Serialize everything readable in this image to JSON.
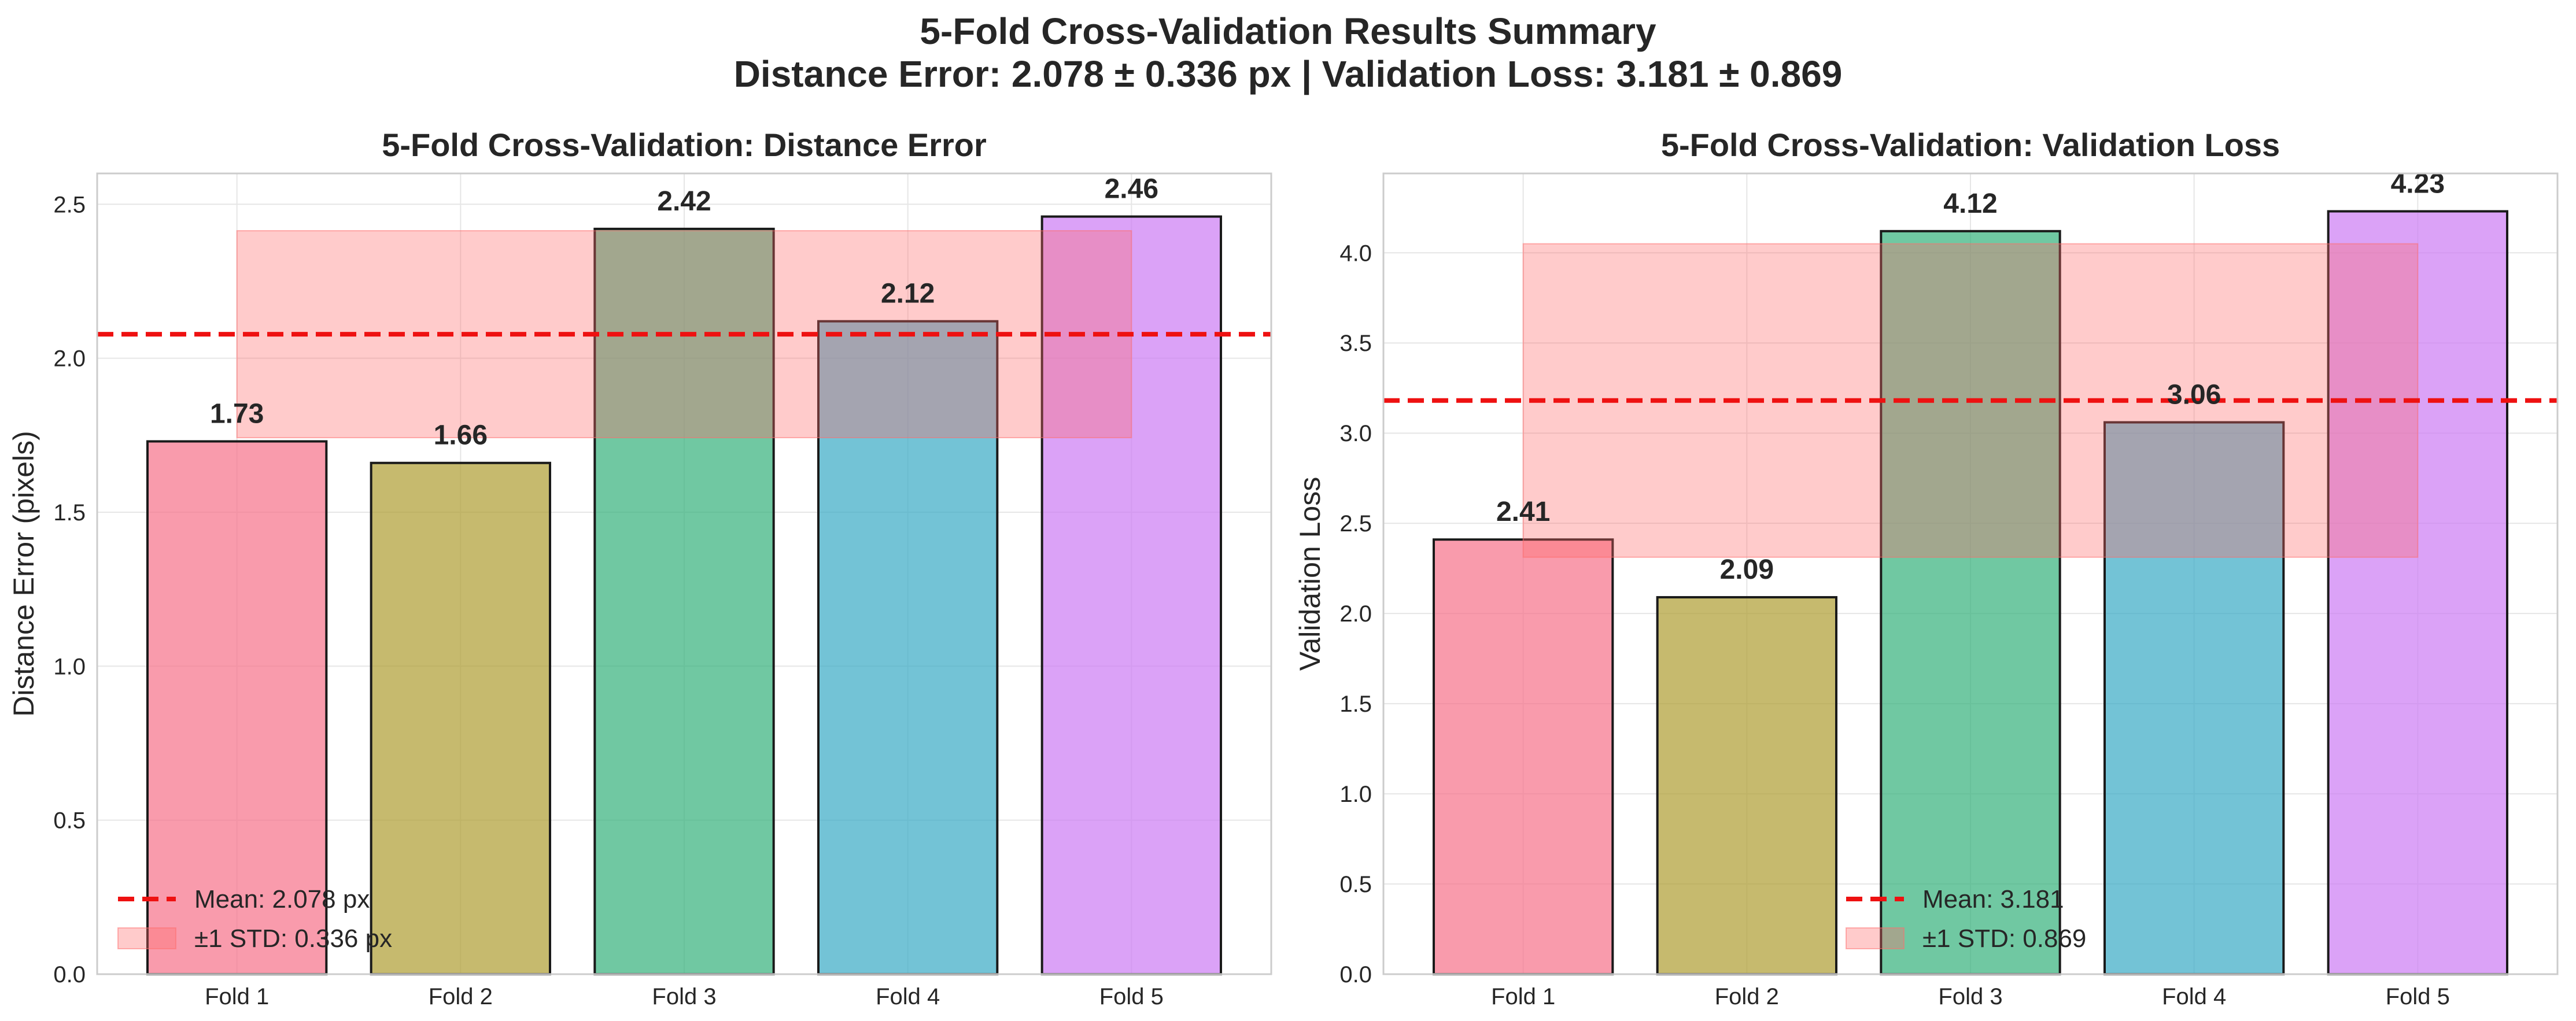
{
  "suptitle": [
    "5-Fold Cross-Validation Results Summary",
    "Distance Error: 2.078 ± 0.336 px | Validation Loss: 3.181 ± 0.869"
  ],
  "colors": {
    "bars": [
      "#f77189",
      "#ae9d31",
      "#33b07a",
      "#38a9c5",
      "#cc7af4"
    ],
    "mean_line": "#ee1111",
    "std_band": "#ff6b6b",
    "grid": "#e6e6e6",
    "frame": "#cccccc"
  },
  "chart_data": [
    {
      "type": "bar",
      "title": "5-Fold Cross-Validation: Distance Error",
      "xlabel": "",
      "ylabel": "Distance Error (pixels)",
      "categories": [
        "Fold 1",
        "Fold 2",
        "Fold 3",
        "Fold 4",
        "Fold 5"
      ],
      "values": [
        1.73,
        1.66,
        2.42,
        2.12,
        2.46
      ],
      "value_labels": [
        "1.73",
        "1.66",
        "2.42",
        "2.12",
        "2.46"
      ],
      "ylim": [
        0,
        2.6
      ],
      "yticks": [
        0.0,
        0.5,
        1.0,
        1.5,
        2.0,
        2.5
      ],
      "ytick_labels": [
        "0.0",
        "0.5",
        "1.0",
        "1.5",
        "2.0",
        "2.5"
      ],
      "mean": 2.078,
      "std": 0.336,
      "legend": [
        "Mean: 2.078 px",
        "±1 STD: 0.336 px"
      ],
      "legend_position": "lower-left",
      "grid": true
    },
    {
      "type": "bar",
      "title": "5-Fold Cross-Validation: Validation Loss",
      "xlabel": "",
      "ylabel": "Validation Loss",
      "categories": [
        "Fold 1",
        "Fold 2",
        "Fold 3",
        "Fold 4",
        "Fold 5"
      ],
      "values": [
        2.41,
        2.09,
        4.12,
        3.06,
        4.23
      ],
      "value_labels": [
        "2.41",
        "2.09",
        "4.12",
        "3.06",
        "4.23"
      ],
      "ylim": [
        0,
        4.44
      ],
      "yticks": [
        0.0,
        0.5,
        1.0,
        1.5,
        2.0,
        2.5,
        3.0,
        3.5,
        4.0
      ],
      "ytick_labels": [
        "0.0",
        "0.5",
        "1.0",
        "1.5",
        "2.0",
        "2.5",
        "3.0",
        "3.5",
        "4.0"
      ],
      "mean": 3.181,
      "std": 0.869,
      "legend": [
        "Mean: 3.181",
        "±1 STD: 0.869"
      ],
      "legend_position": "lower-center",
      "grid": true
    }
  ]
}
